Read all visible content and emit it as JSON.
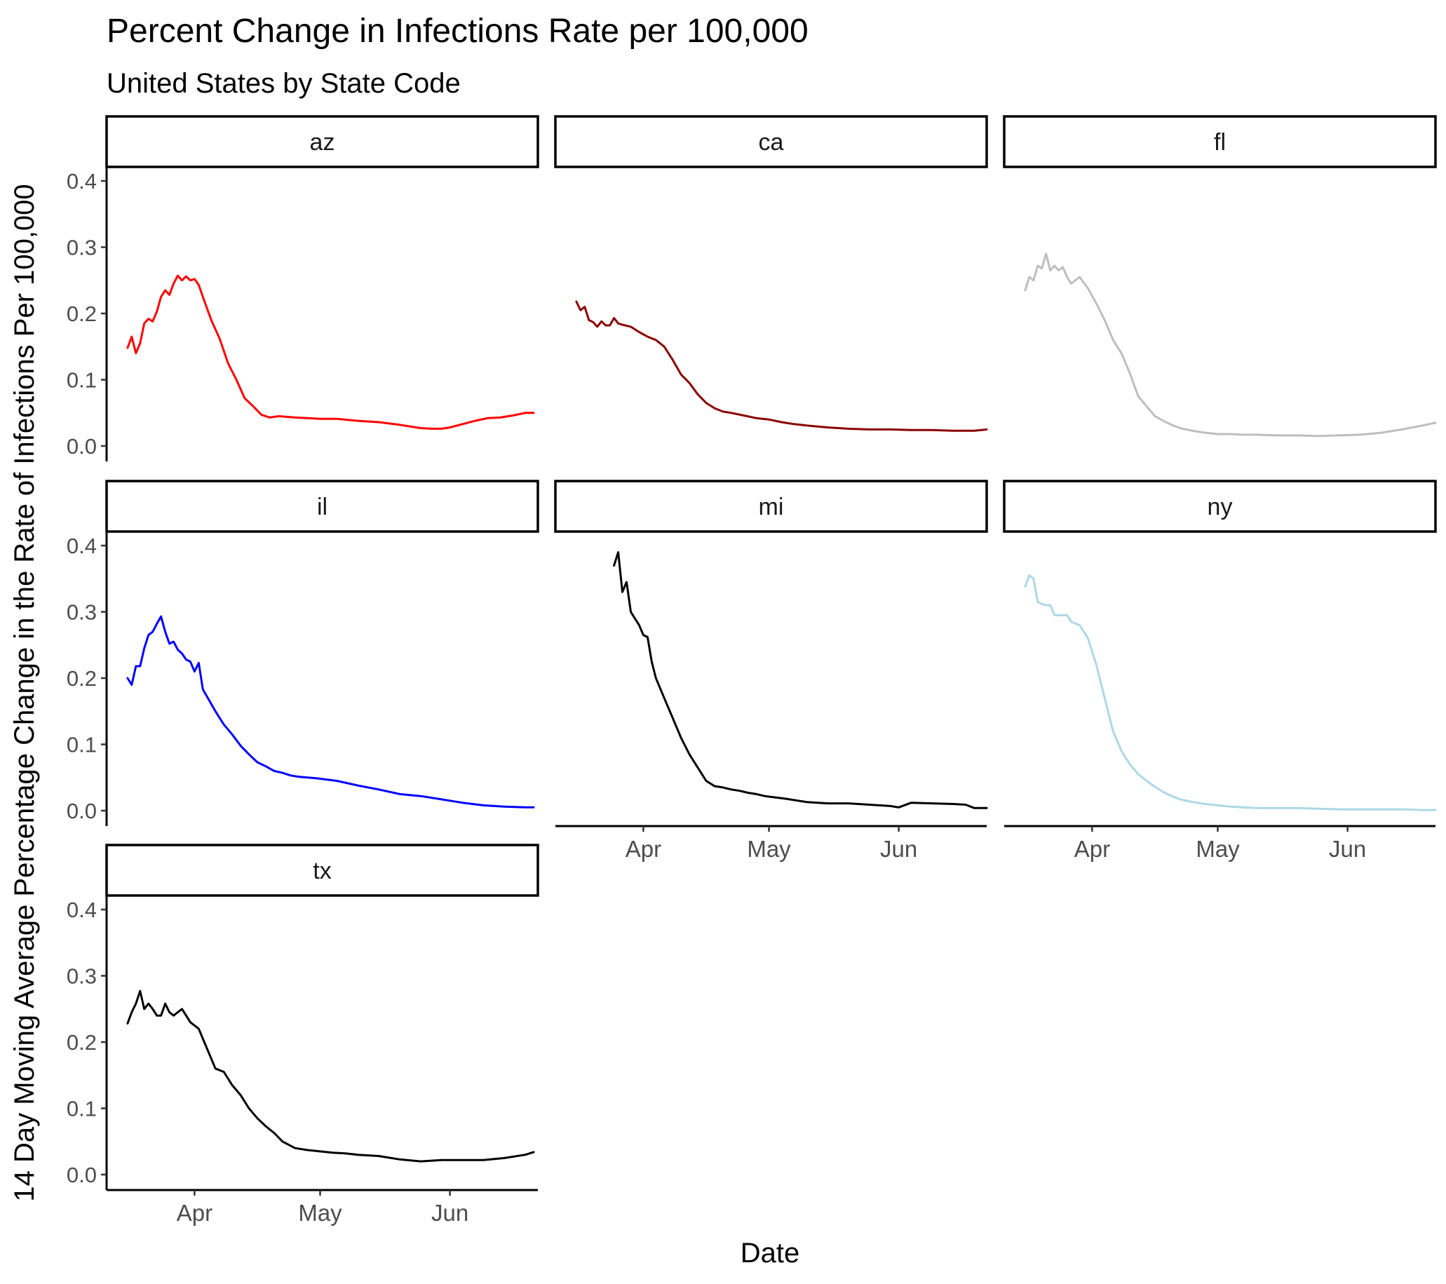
{
  "chart_data": {
    "type": "line",
    "title": "Percent Change in Infections Rate per 100,000",
    "subtitle": "United States by State Code",
    "xlabel": "Date",
    "ylabel": "14 Day Moving Average Percentage Change in the Rate of Infections Per 100,000",
    "y_ticks": [
      "0.0",
      "0.1",
      "0.2",
      "0.3",
      "0.4"
    ],
    "y_tick_values": [
      0,
      0.1,
      0.2,
      0.3,
      0.4
    ],
    "ylim": [
      0,
      0.4
    ],
    "x_ticks": [
      "Apr",
      "May",
      "Jun"
    ],
    "x_tick_days": [
      31,
      61,
      92
    ],
    "xlim": [
      10,
      113
    ],
    "x_unit": "days since 2020-03-01",
    "grid": false,
    "legend": "none",
    "facets": [
      {
        "label": "az",
        "color": "#ff0000",
        "x": [
          15,
          16,
          17,
          18,
          19,
          20,
          21,
          22,
          23,
          24,
          25,
          26,
          27,
          28,
          29,
          30,
          31,
          32,
          33,
          35,
          37,
          39,
          41,
          43,
          45,
          47,
          49,
          51,
          53,
          55,
          58,
          61,
          65,
          70,
          75,
          80,
          85,
          88,
          90,
          92,
          95,
          98,
          101,
          104,
          107,
          110,
          112
        ],
        "y": [
          0.148,
          0.165,
          0.14,
          0.155,
          0.185,
          0.192,
          0.188,
          0.203,
          0.225,
          0.235,
          0.228,
          0.245,
          0.257,
          0.25,
          0.256,
          0.25,
          0.252,
          0.243,
          0.225,
          0.19,
          0.162,
          0.125,
          0.1,
          0.072,
          0.06,
          0.047,
          0.043,
          0.045,
          0.044,
          0.043,
          0.042,
          0.041,
          0.041,
          0.038,
          0.036,
          0.032,
          0.027,
          0.026,
          0.026,
          0.028,
          0.033,
          0.038,
          0.042,
          0.043,
          0.046,
          0.05,
          0.05
        ]
      },
      {
        "label": "ca",
        "color": "#8b0000",
        "x": [
          15,
          16,
          17,
          18,
          19,
          20,
          21,
          22,
          23,
          24,
          25,
          26,
          28,
          30,
          32,
          34,
          36,
          38,
          40,
          42,
          44,
          46,
          48,
          50,
          52,
          55,
          58,
          61,
          64,
          67,
          70,
          75,
          80,
          85,
          90,
          95,
          100,
          105,
          110,
          113
        ],
        "y": [
          0.218,
          0.205,
          0.21,
          0.19,
          0.187,
          0.18,
          0.188,
          0.182,
          0.182,
          0.193,
          0.185,
          0.183,
          0.18,
          0.172,
          0.165,
          0.16,
          0.15,
          0.13,
          0.108,
          0.095,
          0.078,
          0.065,
          0.057,
          0.052,
          0.05,
          0.046,
          0.042,
          0.04,
          0.036,
          0.033,
          0.031,
          0.028,
          0.026,
          0.025,
          0.025,
          0.024,
          0.024,
          0.023,
          0.023,
          0.025
        ]
      },
      {
        "label": "fl",
        "color": "#bebebe",
        "x": [
          15,
          16,
          17,
          18,
          19,
          20,
          21,
          22,
          23,
          24,
          25,
          26,
          28,
          30,
          32,
          34,
          36,
          38,
          40,
          42,
          44,
          46,
          48,
          50,
          52,
          55,
          58,
          61,
          64,
          67,
          70,
          75,
          80,
          85,
          90,
          95,
          100,
          105,
          110,
          113
        ],
        "y": [
          0.235,
          0.255,
          0.25,
          0.272,
          0.268,
          0.29,
          0.265,
          0.272,
          0.265,
          0.27,
          0.255,
          0.245,
          0.255,
          0.238,
          0.215,
          0.19,
          0.16,
          0.14,
          0.11,
          0.075,
          0.06,
          0.045,
          0.038,
          0.032,
          0.027,
          0.023,
          0.02,
          0.018,
          0.018,
          0.017,
          0.017,
          0.016,
          0.016,
          0.015,
          0.016,
          0.017,
          0.02,
          0.025,
          0.031,
          0.035
        ]
      },
      {
        "label": "il",
        "color": "#0000ff",
        "x": [
          15,
          16,
          17,
          18,
          19,
          20,
          21,
          22,
          23,
          24,
          25,
          26,
          27,
          28,
          29,
          30,
          31,
          32,
          33,
          34,
          36,
          38,
          40,
          42,
          44,
          46,
          48,
          50,
          52,
          54,
          56,
          58,
          60,
          65,
          70,
          75,
          80,
          85,
          90,
          95,
          100,
          105,
          110,
          112
        ],
        "y": [
          0.2,
          0.19,
          0.218,
          0.218,
          0.245,
          0.265,
          0.27,
          0.282,
          0.293,
          0.27,
          0.252,
          0.255,
          0.243,
          0.237,
          0.228,
          0.225,
          0.21,
          0.223,
          0.183,
          0.172,
          0.15,
          0.13,
          0.115,
          0.098,
          0.085,
          0.073,
          0.067,
          0.06,
          0.057,
          0.053,
          0.051,
          0.05,
          0.049,
          0.045,
          0.038,
          0.032,
          0.025,
          0.022,
          0.017,
          0.012,
          0.008,
          0.006,
          0.005,
          0.005
        ]
      },
      {
        "label": "mi",
        "color": "#000000",
        "x": [
          24,
          25,
          26,
          27,
          28,
          29,
          30,
          31,
          32,
          33,
          34,
          36,
          38,
          40,
          42,
          44,
          46,
          48,
          50,
          52,
          54,
          56,
          58,
          60,
          65,
          70,
          75,
          80,
          85,
          90,
          92,
          95,
          100,
          105,
          108,
          110,
          113
        ],
        "y": [
          0.37,
          0.39,
          0.33,
          0.345,
          0.3,
          0.29,
          0.28,
          0.265,
          0.262,
          0.225,
          0.2,
          0.17,
          0.14,
          0.11,
          0.085,
          0.065,
          0.045,
          0.037,
          0.035,
          0.032,
          0.03,
          0.027,
          0.025,
          0.022,
          0.018,
          0.013,
          0.011,
          0.011,
          0.009,
          0.007,
          0.005,
          0.012,
          0.011,
          0.01,
          0.009,
          0.004,
          0.004
        ]
      },
      {
        "label": "ny",
        "color": "#add8e6",
        "x": [
          15,
          16,
          17,
          18,
          19,
          20,
          21,
          22,
          23,
          24,
          25,
          26,
          28,
          30,
          32,
          34,
          36,
          38,
          40,
          42,
          44,
          46,
          48,
          50,
          52,
          55,
          58,
          61,
          64,
          67,
          70,
          75,
          80,
          85,
          90,
          95,
          100,
          105,
          110,
          113
        ],
        "y": [
          0.338,
          0.355,
          0.35,
          0.315,
          0.312,
          0.31,
          0.31,
          0.295,
          0.295,
          0.295,
          0.295,
          0.285,
          0.28,
          0.26,
          0.22,
          0.17,
          0.12,
          0.09,
          0.07,
          0.055,
          0.045,
          0.036,
          0.028,
          0.022,
          0.017,
          0.013,
          0.01,
          0.008,
          0.006,
          0.005,
          0.004,
          0.004,
          0.004,
          0.003,
          0.002,
          0.002,
          0.002,
          0.002,
          0.001,
          0.001
        ]
      },
      {
        "label": "tx",
        "color": "#000000",
        "x": [
          15,
          16,
          17,
          18,
          19,
          20,
          21,
          22,
          23,
          24,
          25,
          26,
          28,
          30,
          32,
          34,
          36,
          38,
          40,
          42,
          44,
          46,
          48,
          50,
          52,
          55,
          58,
          61,
          64,
          67,
          70,
          75,
          80,
          85,
          90,
          95,
          100,
          105,
          110,
          112
        ],
        "y": [
          0.228,
          0.245,
          0.258,
          0.277,
          0.25,
          0.258,
          0.25,
          0.24,
          0.24,
          0.258,
          0.245,
          0.24,
          0.25,
          0.23,
          0.22,
          0.19,
          0.16,
          0.155,
          0.135,
          0.12,
          0.1,
          0.085,
          0.073,
          0.063,
          0.05,
          0.04,
          0.037,
          0.035,
          0.033,
          0.032,
          0.03,
          0.028,
          0.023,
          0.02,
          0.022,
          0.022,
          0.022,
          0.025,
          0.03,
          0.034
        ]
      }
    ]
  }
}
